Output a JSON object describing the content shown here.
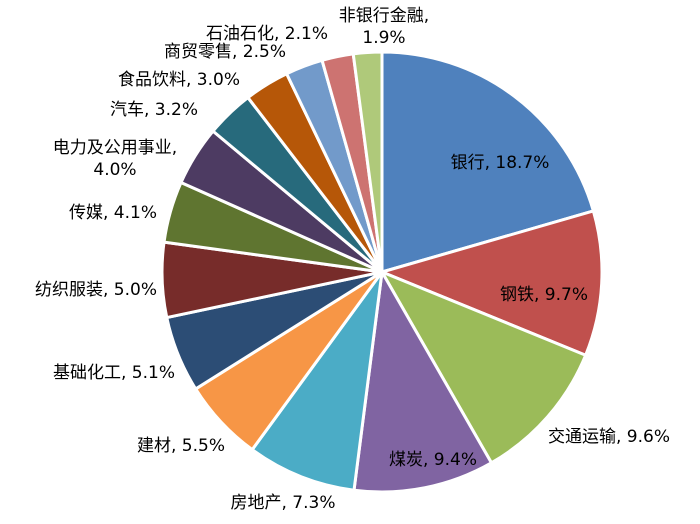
{
  "chart_data": {
    "type": "pie",
    "title": "",
    "unit": "%",
    "start_angle_deg": 0,
    "direction": "clockwise",
    "slices": [
      {
        "label": "银行",
        "value": 18.7,
        "text": "银行, 18.7%",
        "color": "#4F81BD"
      },
      {
        "label": "钢铁",
        "value": 9.7,
        "text": "钢铁, 9.7%",
        "color": "#C0504D"
      },
      {
        "label": "交通运输",
        "value": 9.6,
        "text": "交通运输, 9.6%",
        "color": "#9BBB59"
      },
      {
        "label": "煤炭",
        "value": 9.4,
        "text": "煤炭, 9.4%",
        "color": "#8064A2"
      },
      {
        "label": "房地产",
        "value": 7.3,
        "text": "房地产, 7.3%",
        "color": "#4BACC6"
      },
      {
        "label": "建材",
        "value": 5.5,
        "text": "建材, 5.5%",
        "color": "#F79646"
      },
      {
        "label": "基础化工",
        "value": 5.1,
        "text": "基础化工, 5.1%",
        "color": "#2C4D75"
      },
      {
        "label": "纺织服装",
        "value": 5.0,
        "text": "纺织服装, 5.0%",
        "color": "#772C2A"
      },
      {
        "label": "传媒",
        "value": 4.1,
        "text": "传媒, 4.1%",
        "color": "#5F7530"
      },
      {
        "label": "电力及公用事业",
        "value": 4.0,
        "text_lines": [
          "电力及公用事业,",
          "4.0%"
        ],
        "color": "#4D3B62"
      },
      {
        "label": "汽车",
        "value": 3.2,
        "text": "汽车, 3.2%",
        "color": "#276A7C"
      },
      {
        "label": "食品饮料",
        "value": 3.0,
        "text": "食品饮料, 3.0%",
        "color": "#B65708"
      },
      {
        "label": "商贸零售",
        "value": 2.5,
        "text": "商贸零售, 2.5%",
        "color": "#729ACA"
      },
      {
        "label": "石油石化",
        "value": 2.1,
        "text": "石油石化, 2.1%",
        "color": "#CD7371"
      },
      {
        "label": "非银行金融",
        "value": 1.9,
        "text_lines": [
          "非银行金融,",
          "1.9%"
        ],
        "color": "#AFC97A"
      }
    ]
  }
}
